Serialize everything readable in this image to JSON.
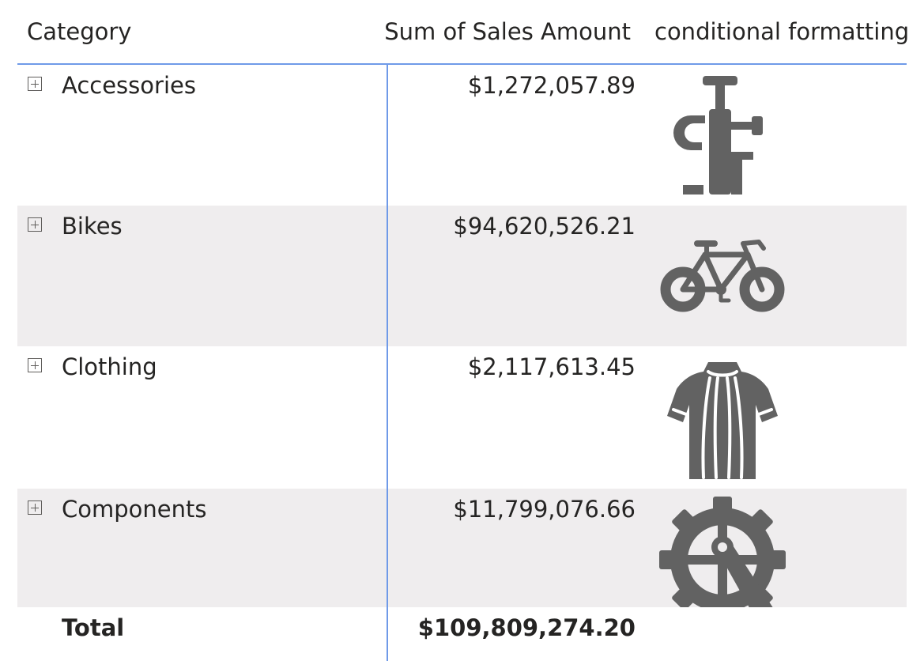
{
  "table": {
    "headers": {
      "category": "Category",
      "sum_sales": "Sum of Sales Amount",
      "conditional": "conditional formatting"
    },
    "rows": [
      {
        "category": "Accessories",
        "amount": "$1,272,057.89",
        "icon": "bike-pump-icon"
      },
      {
        "category": "Bikes",
        "amount": "$94,620,526.21",
        "icon": "bicycle-icon"
      },
      {
        "category": "Clothing",
        "amount": "$2,117,613.45",
        "icon": "cycling-jersey-icon"
      },
      {
        "category": "Components",
        "amount": "$11,799,076.66",
        "icon": "chainring-crank-icon"
      }
    ],
    "total": {
      "label": "Total",
      "amount": "$109,809,274.20"
    }
  },
  "colors": {
    "accent_line": "#6f9ae8",
    "alt_row": "#efedee",
    "icon": "#626262",
    "text": "#252423"
  }
}
